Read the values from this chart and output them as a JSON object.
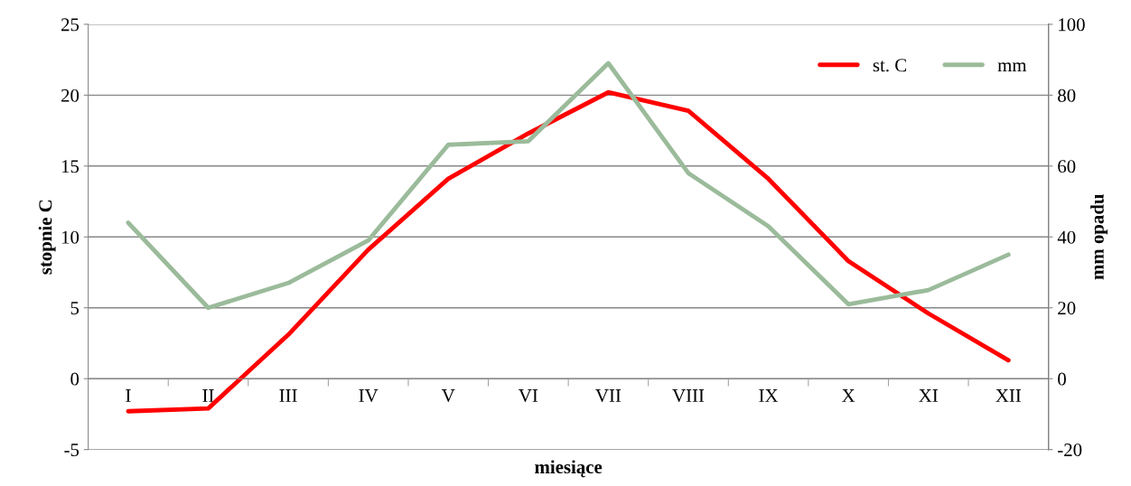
{
  "chart_data": {
    "type": "line",
    "xlabel": "miesiące",
    "ylabel": "stopnie C",
    "y2label": "mm opadu",
    "categories": [
      "I",
      "II",
      "III",
      "IV",
      "V",
      "VI",
      "VII",
      "VIII",
      "IX",
      "X",
      "XI",
      "XII"
    ],
    "series": [
      {
        "name": "st. C",
        "color": "#ff0000",
        "values": [
          -2.3,
          -2.1,
          3.1,
          9.1,
          14.1,
          17.3,
          20.2,
          18.9,
          14.1,
          8.3,
          4.6,
          1.3
        ]
      },
      {
        "name": "mm",
        "color": "#9bbb9b",
        "axis": "y2",
        "values": [
          44,
          20,
          27,
          39,
          66,
          67,
          89,
          58,
          43,
          21,
          25,
          35
        ]
      }
    ],
    "ylim": [
      -5,
      25
    ],
    "yticks": [
      -5,
      0,
      5,
      10,
      15,
      20,
      25
    ],
    "y2lim": [
      -20,
      100
    ],
    "y2ticks": [
      -20,
      0,
      20,
      40,
      60,
      80,
      100
    ],
    "grid": "y",
    "legend": "top right",
    "marker": "none",
    "line_style": "solid"
  }
}
